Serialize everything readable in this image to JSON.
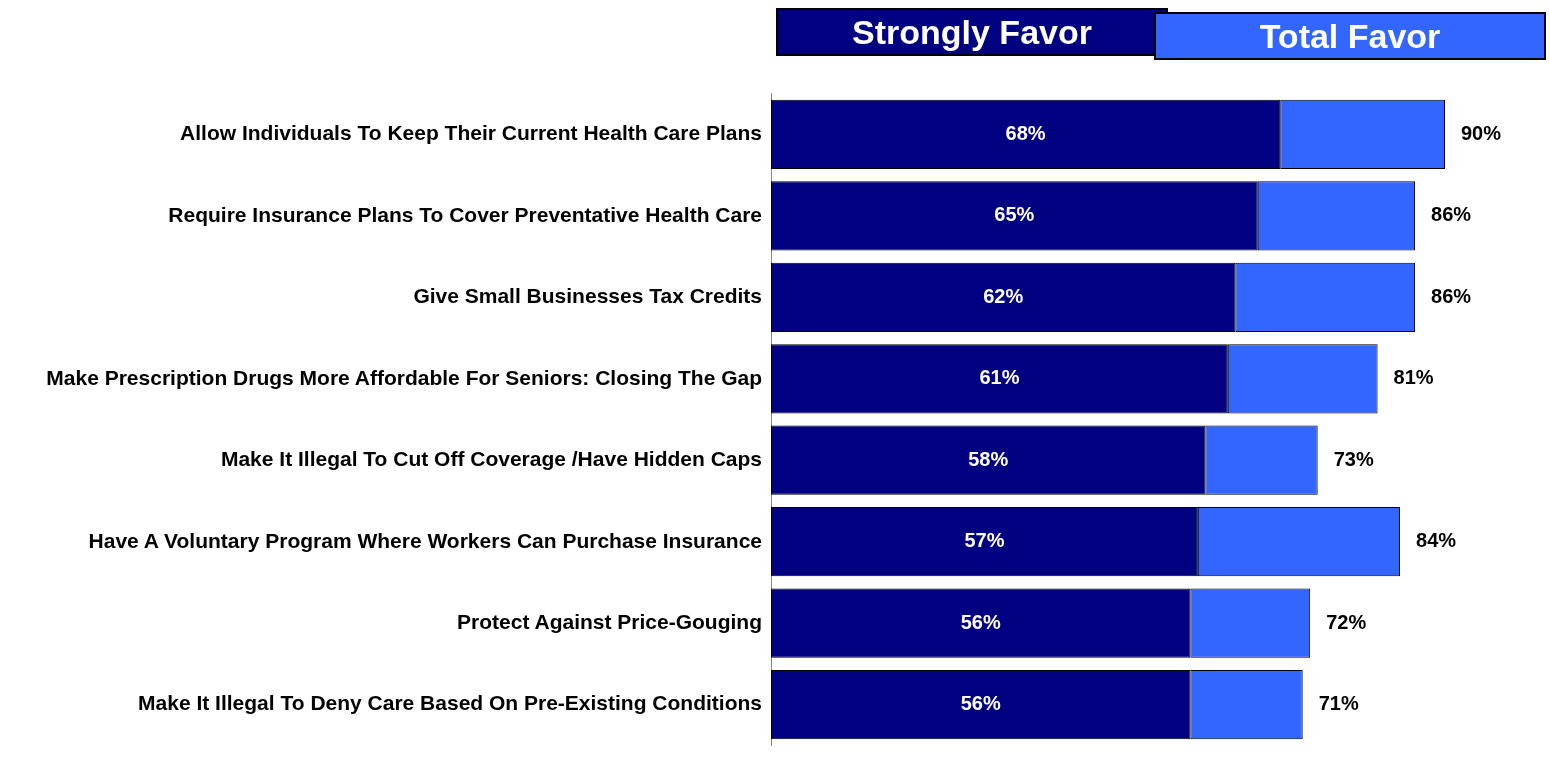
{
  "chart_data": {
    "type": "bar",
    "orientation": "horizontal",
    "stacked": true,
    "categories": [
      "Allow Individuals To Keep Their Current Health Care Plans",
      "Require Insurance Plans To Cover Preventative Health Care",
      "Give Small Businesses Tax Credits",
      "Make Prescription Drugs More Affordable For Seniors: Closing The Gap",
      "Make It Illegal To Cut Off Coverage /Have Hidden Caps",
      "Have A Voluntary Program Where Workers Can Purchase Insurance",
      "Protect Against Price-Gouging",
      "Make It Illegal To Deny Care Based On Pre-Existing Conditions"
    ],
    "series": [
      {
        "name": "Strongly Favor",
        "color": "#000080",
        "values": [
          68,
          65,
          62,
          61,
          58,
          57,
          56,
          56
        ],
        "value_labels": [
          "68%",
          "65%",
          "62%",
          "61%",
          "58%",
          "57%",
          "56%",
          "56%"
        ]
      },
      {
        "name": "Total Favor",
        "color": "#3366ff",
        "values": [
          22,
          21,
          24,
          20,
          15,
          27,
          16,
          15
        ]
      }
    ],
    "totals": [
      "90%",
      "86%",
      "86%",
      "81%",
      "73%",
      "84%",
      "72%",
      "71%"
    ],
    "tick_labels": "y",
    "grid": false,
    "legend": "top"
  }
}
